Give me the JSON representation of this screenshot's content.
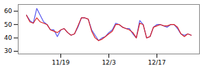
{
  "chart_data": {
    "type": "line",
    "categories": [
      null,
      null,
      null,
      null,
      null,
      null,
      null,
      null,
      null,
      null,
      "11/19",
      null,
      null,
      null,
      null,
      null,
      null,
      null,
      null,
      null,
      null,
      null,
      null,
      null,
      "12/3",
      null,
      null,
      null,
      null,
      null,
      null,
      null,
      null,
      null,
      null,
      null,
      null,
      null,
      "12/17",
      null,
      null,
      null,
      null,
      null,
      null,
      null,
      null,
      null,
      null
    ],
    "series": [
      {
        "color": "#5555ee",
        "values": [
          57,
          53,
          51,
          62,
          57,
          52,
          50,
          46,
          46,
          41,
          46,
          47,
          44,
          42,
          43,
          48,
          55,
          55,
          54,
          46,
          42,
          38,
          40,
          41,
          44,
          46,
          51,
          50,
          48,
          47,
          47,
          43,
          40,
          53,
          50,
          40,
          41,
          48,
          50,
          50,
          49,
          48,
          50,
          50,
          47,
          43,
          42,
          43,
          42
        ]
      },
      {
        "color": "#dd2222",
        "values": [
          57,
          52,
          51,
          55,
          52,
          51,
          50,
          46,
          45,
          44,
          46,
          47,
          44,
          42,
          43,
          49,
          55,
          55,
          54,
          45,
          40,
          38,
          39,
          41,
          43,
          45,
          50,
          50,
          48,
          47,
          46,
          44,
          40,
          51,
          50,
          40,
          41,
          48,
          49,
          50,
          49,
          49,
          50,
          50,
          48,
          43,
          41,
          43,
          42
        ]
      }
    ],
    "ylim": [
      28,
      65
    ],
    "yticks": [
      30,
      40,
      50,
      60
    ],
    "grid": false
  }
}
